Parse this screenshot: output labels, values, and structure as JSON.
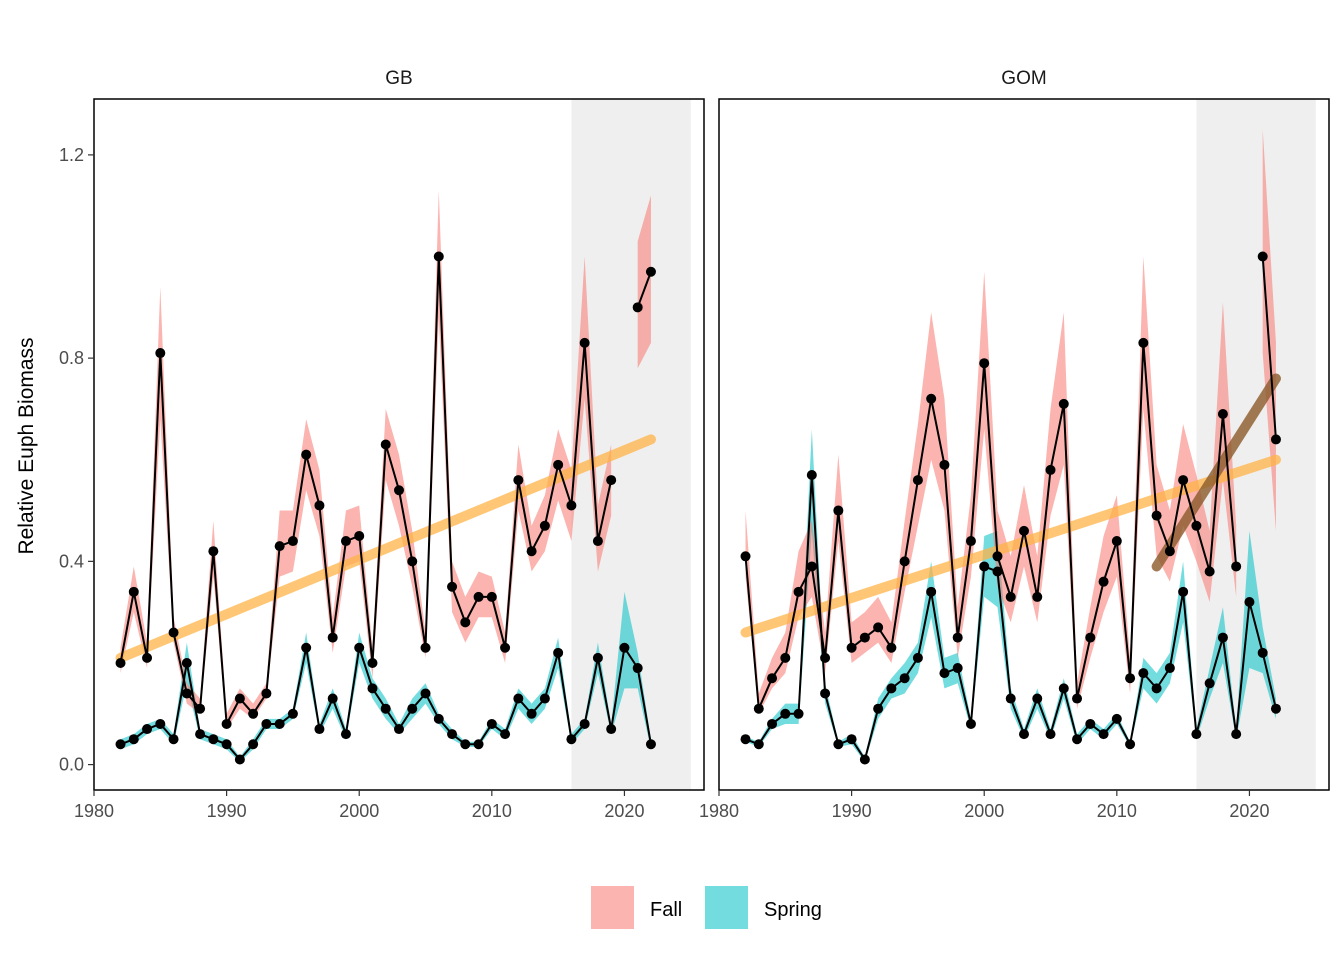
{
  "chart_data": {
    "type": "line",
    "ylabel": "Relative Euph Biomass",
    "xlabel": "",
    "xlim": [
      1980,
      2026
    ],
    "ylim": [
      -0.05,
      1.31
    ],
    "x_ticks": [
      1980,
      1990,
      2000,
      2010,
      2020
    ],
    "y_ticks": [
      0.0,
      0.4,
      0.8,
      1.2
    ],
    "y_tick_labels": [
      "0.0",
      "0.4",
      "0.8",
      "1.2"
    ],
    "shaded_period": [
      2016,
      2025
    ],
    "legend": {
      "placement": "bottom",
      "entries": [
        {
          "label": "Fall",
          "color": "#F8766D"
        },
        {
          "label": "Spring",
          "color": "#00BFC4"
        }
      ]
    },
    "colors": {
      "fall_ribbon": "#F8766D",
      "spring_ribbon": "#00BFC4",
      "line_points": "#000000",
      "long_trend": "#FFB347",
      "short_trend": "#8B5A2B",
      "shade": "#EFEFEF"
    },
    "panels": [
      {
        "title": "GB",
        "fall": {
          "x": [
            1982,
            1983,
            1984,
            1985,
            1986,
            1987,
            1988,
            1989,
            1990,
            1991,
            1992,
            1993,
            1994,
            1995,
            1996,
            1997,
            1998,
            1999,
            2000,
            2001,
            2002,
            2003,
            2004,
            2005,
            2006,
            2007,
            2008,
            2009,
            2010,
            2011,
            2012,
            2013,
            2014,
            2015,
            2016,
            2017,
            2018,
            2019,
            2020,
            2021,
            2022
          ],
          "y": [
            0.2,
            0.34,
            0.21,
            0.81,
            0.26,
            0.14,
            0.11,
            0.42,
            0.08,
            0.13,
            0.1,
            0.14,
            0.43,
            0.44,
            0.61,
            0.51,
            0.25,
            0.44,
            0.45,
            0.2,
            0.63,
            0.54,
            0.4,
            0.23,
            1.0,
            0.35,
            0.28,
            0.33,
            0.33,
            0.23,
            0.56,
            0.42,
            0.47,
            0.59,
            0.51,
            0.83,
            0.44,
            0.56,
            null,
            0.9,
            0.97
          ],
          "lo": [
            0.18,
            0.3,
            0.19,
            0.68,
            0.24,
            0.12,
            0.1,
            0.37,
            0.07,
            0.11,
            0.09,
            0.13,
            0.37,
            0.38,
            0.54,
            0.45,
            0.22,
            0.39,
            0.4,
            0.17,
            0.56,
            0.47,
            0.35,
            0.21,
            0.88,
            0.3,
            0.24,
            0.29,
            0.29,
            0.2,
            0.5,
            0.38,
            0.42,
            0.52,
            0.44,
            0.72,
            0.38,
            0.49,
            null,
            0.78,
            0.83
          ],
          "hi": [
            0.23,
            0.39,
            0.24,
            0.94,
            0.29,
            0.16,
            0.13,
            0.48,
            0.1,
            0.15,
            0.12,
            0.16,
            0.5,
            0.5,
            0.68,
            0.58,
            0.29,
            0.5,
            0.51,
            0.23,
            0.7,
            0.61,
            0.46,
            0.26,
            1.13,
            0.4,
            0.33,
            0.38,
            0.37,
            0.26,
            0.63,
            0.47,
            0.53,
            0.66,
            0.58,
            1.0,
            0.51,
            0.63,
            null,
            1.03,
            1.12
          ]
        },
        "spring": {
          "x": [
            1982,
            1983,
            1984,
            1985,
            1986,
            1987,
            1988,
            1989,
            1990,
            1991,
            1992,
            1993,
            1994,
            1995,
            1996,
            1997,
            1998,
            1999,
            2000,
            2001,
            2002,
            2003,
            2004,
            2005,
            2006,
            2007,
            2008,
            2009,
            2010,
            2011,
            2012,
            2013,
            2014,
            2015,
            2016,
            2017,
            2018,
            2019,
            2020,
            2021,
            2022
          ],
          "y": [
            0.04,
            0.05,
            0.07,
            0.08,
            0.05,
            0.2,
            0.06,
            0.05,
            0.04,
            0.01,
            0.04,
            0.08,
            0.08,
            0.1,
            0.23,
            0.07,
            0.13,
            0.06,
            0.23,
            0.15,
            0.11,
            0.07,
            0.11,
            0.14,
            0.09,
            0.06,
            0.04,
            0.04,
            0.08,
            0.06,
            0.13,
            0.1,
            0.13,
            0.22,
            0.05,
            0.08,
            0.21,
            0.07,
            0.23,
            0.19,
            0.04
          ],
          "lo": [
            0.03,
            0.04,
            0.06,
            0.07,
            0.04,
            0.16,
            0.05,
            0.04,
            0.03,
            0.005,
            0.03,
            0.07,
            0.07,
            0.09,
            0.2,
            0.06,
            0.11,
            0.05,
            0.2,
            0.13,
            0.09,
            0.06,
            0.09,
            0.12,
            0.08,
            0.05,
            0.035,
            0.035,
            0.07,
            0.05,
            0.11,
            0.08,
            0.11,
            0.19,
            0.04,
            0.07,
            0.18,
            0.06,
            0.15,
            0.15,
            0.03
          ],
          "hi": [
            0.05,
            0.06,
            0.08,
            0.09,
            0.06,
            0.24,
            0.07,
            0.06,
            0.05,
            0.015,
            0.05,
            0.09,
            0.09,
            0.11,
            0.26,
            0.08,
            0.15,
            0.07,
            0.26,
            0.17,
            0.13,
            0.08,
            0.13,
            0.16,
            0.1,
            0.07,
            0.045,
            0.045,
            0.09,
            0.07,
            0.15,
            0.12,
            0.15,
            0.25,
            0.06,
            0.09,
            0.24,
            0.08,
            0.34,
            0.22,
            0.05
          ]
        },
        "long_trend": {
          "x": [
            1982,
            2022
          ],
          "y": [
            0.21,
            0.64
          ]
        },
        "short_trend": null
      },
      {
        "title": "GOM",
        "fall": {
          "x": [
            1982,
            1983,
            1984,
            1985,
            1986,
            1987,
            1988,
            1989,
            1990,
            1991,
            1992,
            1993,
            1994,
            1995,
            1996,
            1997,
            1998,
            1999,
            2000,
            2001,
            2002,
            2003,
            2004,
            2005,
            2006,
            2007,
            2008,
            2009,
            2010,
            2011,
            2012,
            2013,
            2014,
            2015,
            2016,
            2017,
            2018,
            2019,
            2020,
            2021,
            2022
          ],
          "y": [
            0.41,
            0.11,
            0.17,
            0.21,
            0.34,
            0.39,
            0.21,
            0.5,
            0.23,
            0.25,
            0.27,
            0.23,
            0.4,
            0.56,
            0.72,
            0.59,
            0.25,
            0.44,
            0.79,
            0.41,
            0.33,
            0.46,
            0.33,
            0.58,
            0.71,
            0.13,
            0.25,
            0.36,
            0.44,
            0.17,
            0.83,
            0.49,
            0.42,
            0.56,
            0.47,
            0.38,
            0.69,
            0.39,
            null,
            1.0,
            0.64
          ],
          "lo": [
            0.37,
            0.1,
            0.15,
            0.18,
            0.29,
            0.33,
            0.18,
            0.44,
            0.2,
            0.22,
            0.24,
            0.2,
            0.34,
            0.47,
            0.6,
            0.5,
            0.21,
            0.37,
            0.66,
            0.35,
            0.28,
            0.39,
            0.28,
            0.49,
            0.59,
            0.11,
            0.21,
            0.3,
            0.37,
            0.14,
            0.7,
            0.41,
            0.36,
            0.47,
            0.4,
            0.32,
            0.56,
            0.33,
            null,
            0.81,
            0.46
          ],
          "hi": [
            0.5,
            0.14,
            0.21,
            0.26,
            0.42,
            0.48,
            0.26,
            0.61,
            0.28,
            0.3,
            0.33,
            0.28,
            0.48,
            0.67,
            0.89,
            0.72,
            0.31,
            0.53,
            0.97,
            0.5,
            0.41,
            0.55,
            0.41,
            0.7,
            0.89,
            0.16,
            0.31,
            0.45,
            0.53,
            0.21,
            1.0,
            0.59,
            0.5,
            0.67,
            0.57,
            0.46,
            0.91,
            0.47,
            null,
            1.25,
            0.83
          ]
        },
        "spring": {
          "x": [
            1982,
            1983,
            1984,
            1985,
            1986,
            1987,
            1988,
            1989,
            1990,
            1991,
            1992,
            1993,
            1994,
            1995,
            1996,
            1997,
            1998,
            1999,
            2000,
            2001,
            2002,
            2003,
            2004,
            2005,
            2006,
            2007,
            2008,
            2009,
            2010,
            2011,
            2012,
            2013,
            2014,
            2015,
            2016,
            2017,
            2018,
            2019,
            2020,
            2021,
            2022
          ],
          "y": [
            0.05,
            0.04,
            0.08,
            0.1,
            0.1,
            0.57,
            0.14,
            0.04,
            0.05,
            0.01,
            0.11,
            0.15,
            0.17,
            0.21,
            0.34,
            0.18,
            0.19,
            0.08,
            0.39,
            0.38,
            0.13,
            0.06,
            0.13,
            0.06,
            0.15,
            0.05,
            0.08,
            0.06,
            0.09,
            0.04,
            0.18,
            0.15,
            0.19,
            0.34,
            0.06,
            0.16,
            0.25,
            0.06,
            0.32,
            0.22,
            0.11
          ],
          "lo": [
            0.045,
            0.035,
            0.07,
            0.08,
            0.08,
            0.46,
            0.12,
            0.035,
            0.04,
            0.005,
            0.09,
            0.13,
            0.14,
            0.18,
            0.29,
            0.15,
            0.16,
            0.07,
            0.33,
            0.31,
            0.11,
            0.05,
            0.11,
            0.05,
            0.13,
            0.04,
            0.07,
            0.05,
            0.08,
            0.035,
            0.15,
            0.12,
            0.16,
            0.28,
            0.05,
            0.13,
            0.2,
            0.05,
            0.19,
            0.18,
            0.09
          ],
          "hi": [
            0.055,
            0.045,
            0.09,
            0.12,
            0.12,
            0.66,
            0.16,
            0.045,
            0.06,
            0.015,
            0.13,
            0.17,
            0.2,
            0.24,
            0.4,
            0.21,
            0.22,
            0.09,
            0.45,
            0.46,
            0.15,
            0.07,
            0.15,
            0.07,
            0.17,
            0.06,
            0.09,
            0.07,
            0.1,
            0.045,
            0.21,
            0.18,
            0.22,
            0.4,
            0.07,
            0.19,
            0.31,
            0.07,
            0.46,
            0.27,
            0.13
          ]
        },
        "long_trend": {
          "x": [
            1982,
            2022
          ],
          "y": [
            0.26,
            0.6
          ]
        },
        "short_trend": {
          "x": [
            2013,
            2022
          ],
          "y": [
            0.39,
            0.76
          ]
        }
      }
    ]
  }
}
